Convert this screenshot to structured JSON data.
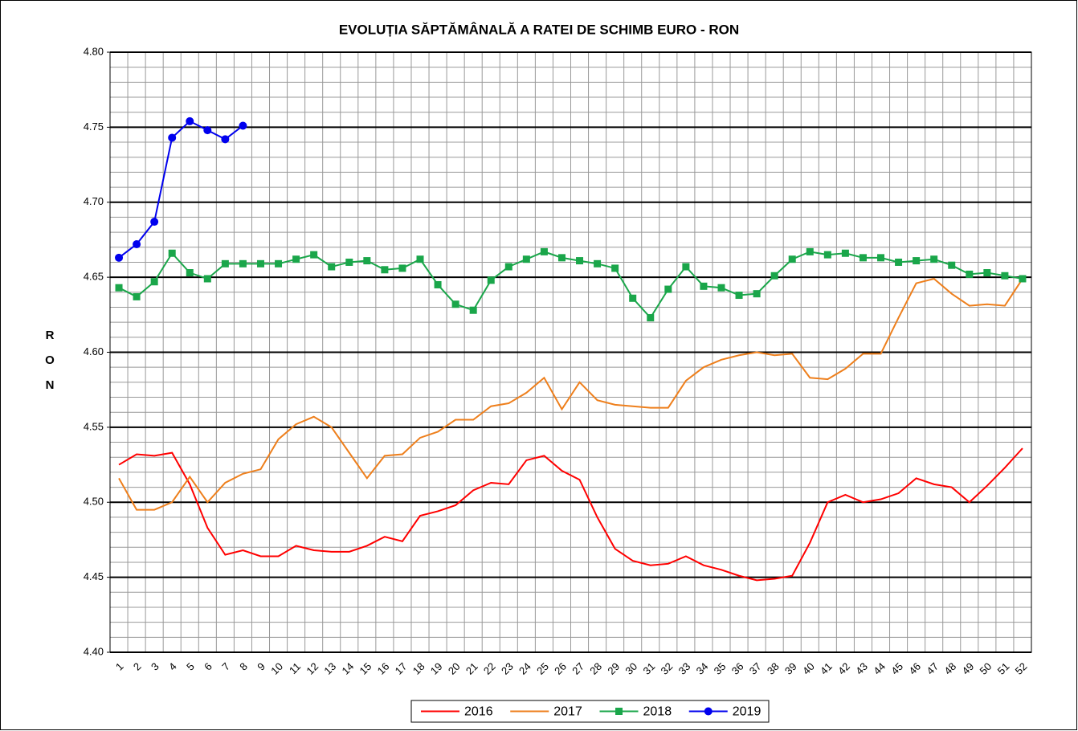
{
  "chart_data": {
    "type": "line",
    "title": "EVOLUȚIA SĂPTĂMÂNALĂ A RATEI DE SCHIMB EURO - RON",
    "y_label": "RON",
    "categories": [
      "1",
      "2",
      "3",
      "4",
      "5",
      "6",
      "7",
      "8",
      "9",
      "10",
      "11",
      "12",
      "13",
      "14",
      "15",
      "16",
      "17",
      "18",
      "19",
      "20",
      "21",
      "22",
      "23",
      "24",
      "25",
      "26",
      "27",
      "28",
      "29",
      "30",
      "31",
      "32",
      "33",
      "34",
      "35",
      "36",
      "37",
      "38",
      "39",
      "40",
      "41",
      "42",
      "43",
      "44",
      "45",
      "46",
      "47",
      "48",
      "49",
      "50",
      "51",
      "52"
    ],
    "series": [
      {
        "name": "2016",
        "color": "#ff0000",
        "marker": "none",
        "values": [
          4.525,
          4.532,
          4.531,
          4.533,
          4.512,
          4.483,
          4.465,
          4.468,
          4.464,
          4.464,
          4.471,
          4.468,
          4.467,
          4.467,
          4.471,
          4.477,
          4.474,
          4.491,
          4.494,
          4.498,
          4.508,
          4.513,
          4.512,
          4.528,
          4.531,
          4.521,
          4.515,
          4.49,
          4.469,
          4.461,
          4.458,
          4.459,
          4.464,
          4.458,
          4.455,
          4.451,
          4.448,
          4.449,
          4.451,
          4.473,
          4.5,
          4.505,
          4.5,
          4.502,
          4.506,
          4.516,
          4.512,
          4.51,
          4.5,
          4.511,
          4.523,
          4.536
        ]
      },
      {
        "name": "2017",
        "color": "#ee7f1c",
        "marker": "none",
        "values": [
          4.516,
          4.495,
          4.495,
          4.5,
          4.517,
          4.5,
          4.513,
          4.519,
          4.522,
          4.542,
          4.552,
          4.557,
          4.55,
          4.533,
          4.516,
          4.531,
          4.532,
          4.543,
          4.547,
          4.555,
          4.555,
          4.564,
          4.566,
          4.573,
          4.583,
          4.562,
          4.58,
          4.568,
          4.565,
          4.564,
          4.563,
          4.563,
          4.581,
          4.59,
          4.595,
          4.598,
          4.6,
          4.598,
          4.599,
          4.583,
          4.582,
          4.589,
          4.599,
          4.599,
          4.623,
          4.646,
          4.649,
          4.639,
          4.631,
          4.632,
          4.631,
          4.649
        ]
      },
      {
        "name": "2018",
        "color": "#1aa64a",
        "marker": "square",
        "values": [
          4.643,
          4.637,
          4.647,
          4.666,
          4.653,
          4.649,
          4.659,
          4.659,
          4.659,
          4.659,
          4.662,
          4.665,
          4.657,
          4.66,
          4.661,
          4.655,
          4.656,
          4.662,
          4.645,
          4.632,
          4.628,
          4.648,
          4.657,
          4.662,
          4.667,
          4.663,
          4.661,
          4.659,
          4.656,
          4.636,
          4.623,
          4.642,
          4.657,
          4.644,
          4.643,
          4.638,
          4.639,
          4.651,
          4.662,
          4.667,
          4.665,
          4.666,
          4.663,
          4.663,
          4.66,
          4.661,
          4.662,
          4.658,
          4.652,
          4.653,
          4.651,
          4.649
        ]
      },
      {
        "name": "2019",
        "color": "#0000ee",
        "marker": "circle",
        "values": [
          4.663,
          4.672,
          4.687,
          4.743,
          4.754,
          4.748,
          4.742,
          4.751,
          null,
          null,
          null,
          null,
          null,
          null,
          null,
          null,
          null,
          null,
          null,
          null,
          null,
          null,
          null,
          null,
          null,
          null,
          null,
          null,
          null,
          null,
          null,
          null,
          null,
          null,
          null,
          null,
          null,
          null,
          null,
          null,
          null,
          null,
          null,
          null,
          null,
          null,
          null,
          null,
          null,
          null,
          null,
          null
        ]
      }
    ],
    "ylim": [
      4.4,
      4.8
    ],
    "yticks": [
      {
        "value": 4.4,
        "label": "4.40"
      },
      {
        "value": 4.45,
        "label": "4.45"
      },
      {
        "value": 4.5,
        "label": "4.50"
      },
      {
        "value": 4.55,
        "label": "4.55"
      },
      {
        "value": 4.6,
        "label": "4.60"
      },
      {
        "value": 4.65,
        "label": "4.65"
      },
      {
        "value": 4.7,
        "label": "4.70"
      },
      {
        "value": 4.75,
        "label": "4.75"
      },
      {
        "value": 4.8,
        "label": "4.80"
      }
    ],
    "grid": true,
    "legend": "bottom"
  }
}
